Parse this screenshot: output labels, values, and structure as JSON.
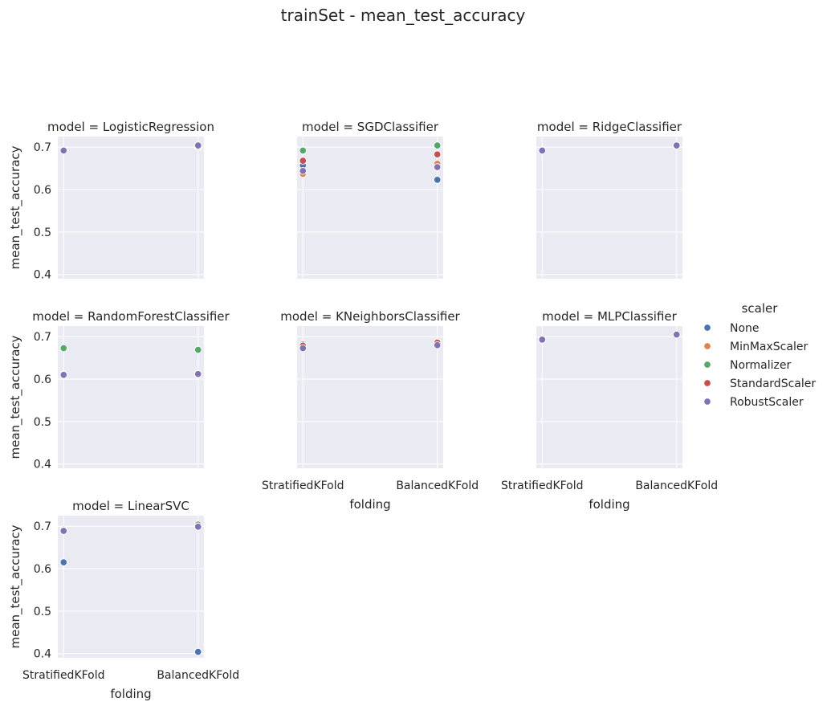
{
  "figure": {
    "title": "trainSet - mean_test_accuracy"
  },
  "colors": {
    "panel_bg": "#eaeaf2",
    "grid": "#ffffff",
    "None": "#4c72b0",
    "MinMaxScaler": "#dd8452",
    "Normalizer": "#55a868",
    "StandardScaler": "#c44e52",
    "RobustScaler": "#8172b3"
  },
  "legend": {
    "title": "scaler",
    "entries": [
      "None",
      "MinMaxScaler",
      "Normalizer",
      "StandardScaler",
      "RobustScaler"
    ],
    "placement": "right"
  },
  "chart_data": [
    {
      "type": "scatter",
      "title": "model = LogisticRegression",
      "xlabel": "",
      "ylabel": "mean_test_accuracy",
      "categories": [
        "StratifiedKFold",
        "BalancedKFold"
      ],
      "ylim": [
        0.39,
        0.725
      ],
      "yticks": [
        0.4,
        0.5,
        0.6,
        0.7
      ],
      "show_xticklabels": false,
      "show_yticklabels": true,
      "series": [
        {
          "name": "None",
          "values": [
            0.692,
            0.7
          ]
        },
        {
          "name": "MinMaxScaler",
          "values": [
            0.692,
            0.7
          ]
        },
        {
          "name": "Normalizer",
          "values": [
            0.692,
            0.7
          ]
        },
        {
          "name": "StandardScaler",
          "values": [
            0.692,
            0.702
          ]
        },
        {
          "name": "RobustScaler",
          "values": [
            0.692,
            0.704
          ]
        }
      ]
    },
    {
      "type": "scatter",
      "title": "model = SGDClassifier",
      "xlabel": "",
      "ylabel": "",
      "categories": [
        "StratifiedKFold",
        "BalancedKFold"
      ],
      "ylim": [
        0.39,
        0.725
      ],
      "yticks": [
        0.4,
        0.5,
        0.6,
        0.7
      ],
      "show_xticklabels": false,
      "show_yticklabels": false,
      "series": [
        {
          "name": "None",
          "values": [
            0.657,
            0.623
          ]
        },
        {
          "name": "MinMaxScaler",
          "values": [
            0.637,
            0.661
          ]
        },
        {
          "name": "Normalizer",
          "values": [
            0.692,
            0.704
          ]
        },
        {
          "name": "StandardScaler",
          "values": [
            0.668,
            0.683
          ]
        },
        {
          "name": "RobustScaler",
          "values": [
            0.644,
            0.653
          ]
        }
      ]
    },
    {
      "type": "scatter",
      "title": "model = RidgeClassifier",
      "xlabel": "",
      "ylabel": "",
      "categories": [
        "StratifiedKFold",
        "BalancedKFold"
      ],
      "ylim": [
        0.39,
        0.725
      ],
      "yticks": [
        0.4,
        0.5,
        0.6,
        0.7
      ],
      "show_xticklabels": false,
      "show_yticklabels": false,
      "series": [
        {
          "name": "None",
          "values": [
            0.692,
            0.704
          ]
        },
        {
          "name": "MinMaxScaler",
          "values": [
            0.692,
            0.704
          ]
        },
        {
          "name": "Normalizer",
          "values": [
            0.692,
            0.704
          ]
        },
        {
          "name": "StandardScaler",
          "values": [
            0.692,
            0.704
          ]
        },
        {
          "name": "RobustScaler",
          "values": [
            0.692,
            0.704
          ]
        }
      ]
    },
    {
      "type": "scatter",
      "title": "model = RandomForestClassifier",
      "xlabel": "",
      "ylabel": "mean_test_accuracy",
      "categories": [
        "StratifiedKFold",
        "BalancedKFold"
      ],
      "ylim": [
        0.39,
        0.725
      ],
      "yticks": [
        0.4,
        0.5,
        0.6,
        0.7
      ],
      "show_xticklabels": false,
      "show_yticklabels": true,
      "series": [
        {
          "name": "None",
          "values": [
            0.61,
            0.612
          ]
        },
        {
          "name": "MinMaxScaler",
          "values": [
            0.61,
            0.612
          ]
        },
        {
          "name": "Normalizer",
          "values": [
            0.673,
            0.669
          ]
        },
        {
          "name": "StandardScaler",
          "values": [
            0.61,
            0.612
          ]
        },
        {
          "name": "RobustScaler",
          "values": [
            0.61,
            0.612
          ]
        }
      ]
    },
    {
      "type": "scatter",
      "title": "model = KNeighborsClassifier",
      "xlabel": "folding",
      "ylabel": "",
      "categories": [
        "StratifiedKFold",
        "BalancedKFold"
      ],
      "ylim": [
        0.39,
        0.725
      ],
      "yticks": [
        0.4,
        0.5,
        0.6,
        0.7
      ],
      "show_xticklabels": true,
      "show_yticklabels": false,
      "series": [
        {
          "name": "None",
          "values": [
            0.679,
            0.685
          ]
        },
        {
          "name": "MinMaxScaler",
          "values": [
            0.679,
            0.685
          ]
        },
        {
          "name": "Normalizer",
          "values": [
            0.682,
            0.684
          ]
        },
        {
          "name": "StandardScaler",
          "values": [
            0.679,
            0.686
          ]
        },
        {
          "name": "RobustScaler",
          "values": [
            0.673,
            0.68
          ]
        }
      ]
    },
    {
      "type": "scatter",
      "title": "model = MLPClassifier",
      "xlabel": "folding",
      "ylabel": "",
      "categories": [
        "StratifiedKFold",
        "BalancedKFold"
      ],
      "ylim": [
        0.39,
        0.725
      ],
      "yticks": [
        0.4,
        0.5,
        0.6,
        0.7
      ],
      "show_xticklabels": true,
      "show_yticklabels": false,
      "series": [
        {
          "name": "None",
          "values": [
            0.693,
            0.705
          ]
        },
        {
          "name": "MinMaxScaler",
          "values": [
            0.693,
            0.705
          ]
        },
        {
          "name": "Normalizer",
          "values": [
            0.693,
            0.705
          ]
        },
        {
          "name": "StandardScaler",
          "values": [
            0.693,
            0.705
          ]
        },
        {
          "name": "RobustScaler",
          "values": [
            0.693,
            0.705
          ]
        }
      ]
    },
    {
      "type": "scatter",
      "title": "model = LinearSVC",
      "xlabel": "folding",
      "ylabel": "mean_test_accuracy",
      "categories": [
        "StratifiedKFold",
        "BalancedKFold"
      ],
      "ylim": [
        0.39,
        0.725
      ],
      "yticks": [
        0.4,
        0.5,
        0.6,
        0.7
      ],
      "show_xticklabels": true,
      "show_yticklabels": true,
      "series": [
        {
          "name": "None",
          "values": [
            0.615,
            0.404
          ]
        },
        {
          "name": "MinMaxScaler",
          "values": [
            0.69,
            0.7
          ]
        },
        {
          "name": "Normalizer",
          "values": [
            0.692,
            0.704
          ]
        },
        {
          "name": "StandardScaler",
          "values": [
            0.69,
            0.7
          ]
        },
        {
          "name": "RobustScaler",
          "values": [
            0.689,
            0.699
          ]
        }
      ]
    }
  ]
}
